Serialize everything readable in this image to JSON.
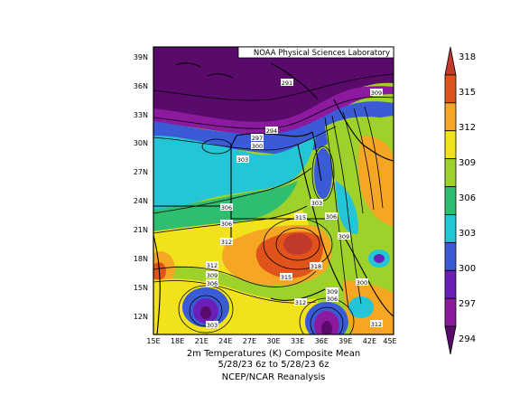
{
  "header": {
    "lab_label": "NOAA Physical Sciences Laboratory"
  },
  "map": {
    "lat_ticks": [
      "39N",
      "36N",
      "33N",
      "30N",
      "27N",
      "24N",
      "21N",
      "18N",
      "15N",
      "12N"
    ],
    "lon_ticks": [
      "15E",
      "18E",
      "21E",
      "24E",
      "27E",
      "30E",
      "33E",
      "36E",
      "39E",
      "42E",
      "45E"
    ],
    "contour_labels": [
      "291",
      "309",
      "294",
      "297",
      "300",
      "303",
      "303",
      "306",
      "306",
      "306",
      "309",
      "312",
      "315",
      "318",
      "312",
      "309",
      "306",
      "315",
      "312",
      "309",
      "306",
      "303",
      "300",
      "312"
    ]
  },
  "colorbar": {
    "labels": [
      "318",
      "315",
      "312",
      "309",
      "306",
      "303",
      "300",
      "297",
      "294"
    ],
    "colors": [
      "#c0392b",
      "#e0531a",
      "#f5a623",
      "#f2e21c",
      "#9ed22b",
      "#2fbd6f",
      "#23c5d6",
      "#3b5bd6",
      "#6a20b8",
      "#8c1a9e",
      "#5a0a6b"
    ]
  },
  "footer": {
    "line1": "2m Temperatures (K)   Composite Mean",
    "line2": "5/28/23 6z  to 5/28/23 6z",
    "line3": "NCEP/NCAR Reanalysis"
  }
}
